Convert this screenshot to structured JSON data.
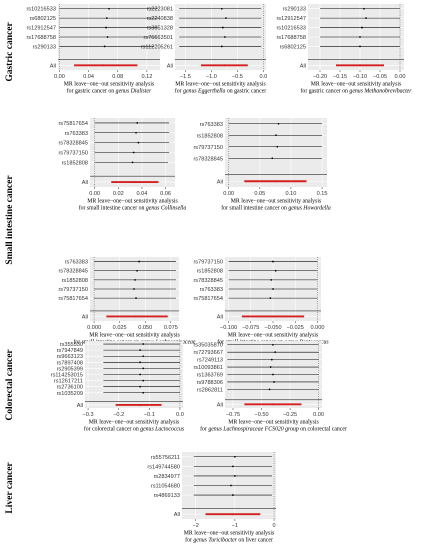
{
  "groups": [
    {
      "label": "Gastric cancer"
    },
    {
      "label": "Small intestine cancer"
    },
    {
      "label": "Colorectal cancer"
    },
    {
      "label": "Liver cancer"
    }
  ],
  "chart_data": [
    {
      "type": "forest",
      "snps": [
        "rs10216533",
        "rs6802125",
        "rs12912547",
        "rs17688758",
        "rs290133"
      ],
      "estimates": [
        0.068,
        0.065,
        0.064,
        0.066,
        0.062
      ],
      "ci_low": [
        0.0,
        0.0,
        0.0,
        0.0,
        0.0
      ],
      "ci_high": [
        0.135,
        0.135,
        0.135,
        0.133,
        0.13
      ],
      "all": {
        "estimate": 0.06,
        "low": 0.02,
        "high": 0.107
      },
      "xlim": [
        -0.002,
        0.138
      ],
      "xticks": [
        {
          "v": 0.0,
          "t": "0.00"
        },
        {
          "v": 0.04,
          "t": "0.04"
        },
        {
          "v": 0.08,
          "t": "0.08"
        },
        {
          "v": 0.12,
          "t": "0.12"
        }
      ],
      "caption1": "MR leave−one−out sensitivity analysis",
      "caption2_pre": "for gastric cancer on ",
      "caption2_it": "genus Dialister",
      "caption2_post": ""
    },
    {
      "type": "forest",
      "snps": [
        "rs2223081",
        "rs2240838",
        "rs3851328",
        "rs76663501",
        "rs112205261"
      ],
      "estimates": [
        -0.8,
        -0.72,
        -0.78,
        -0.74,
        -0.8
      ],
      "ci_low": [
        -1.62,
        -1.62,
        -1.62,
        -1.62,
        -1.62
      ],
      "ci_high": [
        -0.04,
        -0.04,
        -0.04,
        -0.04,
        -0.04
      ],
      "all": {
        "estimate": -0.75,
        "low": -1.2,
        "high": -0.3
      },
      "xlim": [
        -1.7,
        0.05
      ],
      "xticks": [
        {
          "v": -1.5,
          "t": "−1.5"
        },
        {
          "v": -1.0,
          "t": "−1.0"
        },
        {
          "v": -0.5,
          "t": "−0.5"
        },
        {
          "v": 0.0,
          "t": "0.0"
        }
      ],
      "caption1": "MR leave−one−out sensitivity analysis",
      "caption2_pre": "for ",
      "caption2_it": "genus Eggerthella",
      "caption2_post": " on gastric cancer"
    },
    {
      "type": "forest",
      "snps": [
        "rs290133",
        "rs12912547",
        "rs10216533",
        "rs17688758",
        "rs6802125"
      ],
      "estimates": [
        -0.09,
        -0.085,
        -0.095,
        -0.1,
        -0.1
      ],
      "ci_low": [
        -0.2,
        -0.2,
        -0.2,
        -0.2,
        -0.2
      ],
      "ci_high": [
        0.0,
        0.0,
        0.0,
        0.0,
        0.0
      ],
      "all": {
        "estimate": -0.1,
        "low": -0.16,
        "high": -0.04
      },
      "xlim": [
        -0.23,
        0.01
      ],
      "xticks": [
        {
          "v": -0.2,
          "t": "−0.20"
        },
        {
          "v": -0.15,
          "t": "−0.15"
        },
        {
          "v": -0.1,
          "t": "−0.10"
        },
        {
          "v": -0.05,
          "t": "−0.05"
        },
        {
          "v": 0.0,
          "t": "0.00"
        }
      ],
      "caption1": "MR leave−one−out sensitivity analysis",
      "caption2_pre": "for gastric cancer on ",
      "caption2_it": "genus Methanobrevibacter",
      "caption2_post": ""
    },
    {
      "type": "forest",
      "snps": [
        "rs75817654",
        "rs763383",
        "rs78328845",
        "rs79737150",
        "rs1852808"
      ],
      "estimates": [
        0.036,
        0.035,
        0.037,
        0.033,
        0.032
      ],
      "ci_low": [
        0.0,
        0.0,
        0.0,
        0.0,
        0.0
      ],
      "ci_high": [
        0.063,
        0.063,
        0.063,
        0.063,
        0.062
      ],
      "all": {
        "estimate": 0.034,
        "low": 0.014,
        "high": 0.054
      },
      "xlim": [
        -0.004,
        0.068
      ],
      "xticks": [
        {
          "v": 0.0,
          "t": "0.00"
        },
        {
          "v": 0.02,
          "t": "0.02"
        },
        {
          "v": 0.04,
          "t": "0.04"
        },
        {
          "v": 0.06,
          "t": "0.06"
        }
      ],
      "caption1": "MR leave−one−out sensitivity analysis",
      "caption2_pre": "for small intestine cancer on ",
      "caption2_it": "genus Collinsella",
      "caption2_post": ""
    },
    {
      "type": "forest",
      "snps": [
        "rs763383",
        "rs1852808",
        "rs79737150",
        "rs78328845"
      ],
      "estimates": [
        0.08,
        0.076,
        0.078,
        0.07
      ],
      "ci_low": [
        0.0,
        0.0,
        0.0,
        0.0
      ],
      "ci_high": [
        0.15,
        0.15,
        0.15,
        0.15
      ],
      "all": {
        "estimate": 0.075,
        "low": 0.025,
        "high": 0.125
      },
      "xlim": [
        -0.006,
        0.158
      ],
      "xticks": [
        {
          "v": 0.0,
          "t": "0.00"
        },
        {
          "v": 0.05,
          "t": "0.05"
        },
        {
          "v": 0.1,
          "t": "0.10"
        },
        {
          "v": 0.15,
          "t": "0.15"
        }
      ],
      "caption1": "MR leave−one−out sensitivity analysis",
      "caption2_pre": "for small intestine cancer on ",
      "caption2_it": "genus Howardella",
      "caption2_post": ""
    },
    {
      "type": "forest",
      "snps": [
        "rs763383",
        "rs78328845",
        "rs1852808",
        "rs79737150",
        "rs75817654"
      ],
      "estimates": [
        0.044,
        0.042,
        0.04,
        0.039,
        0.041
      ],
      "ci_low": [
        0.0,
        0.0,
        0.0,
        0.0,
        0.0
      ],
      "ci_high": [
        0.08,
        0.08,
        0.08,
        0.08,
        0.08
      ],
      "all": {
        "estimate": 0.04,
        "low": 0.012,
        "high": 0.072
      },
      "xlim": [
        -0.004,
        0.083
      ],
      "xticks": [
        {
          "v": 0.0,
          "t": "0.000"
        },
        {
          "v": 0.025,
          "t": "0.025"
        },
        {
          "v": 0.05,
          "t": "0.050"
        },
        {
          "v": 0.075,
          "t": "0.075"
        }
      ],
      "caption1": "MR leave−one−out sensitivity analysis",
      "caption2_pre": "for small intestine cancer on ",
      "caption2_it": "genus Lachnospiraceae",
      "caption2_post": ""
    },
    {
      "type": "forest",
      "snps": [
        "rs79737150",
        "rs1852808",
        "rs78328845",
        "rs763383",
        "rs75817654"
      ],
      "estimates": [
        -0.05,
        -0.047,
        -0.052,
        -0.05,
        -0.053
      ],
      "ci_low": [
        -0.1,
        -0.1,
        -0.1,
        -0.1,
        -0.1
      ],
      "ci_high": [
        0.0,
        0.0,
        0.0,
        0.0,
        0.0
      ],
      "all": {
        "estimate": -0.05,
        "low": -0.085,
        "high": -0.015
      },
      "xlim": [
        -0.104,
        0.004
      ],
      "xticks": [
        {
          "v": -0.1,
          "t": "−0.100"
        },
        {
          "v": -0.075,
          "t": "−0.075"
        },
        {
          "v": -0.05,
          "t": "−0.050"
        },
        {
          "v": -0.025,
          "t": "−0.025"
        },
        {
          "v": 0.0,
          "t": "0.000"
        }
      ],
      "caption1": "MR leave−one−out sensitivity analysis",
      "caption2_pre": "for small intestine cancer on ",
      "caption2_it": "genus Peptococcus",
      "caption2_post": ""
    },
    {
      "type": "forest",
      "snps": [
        "rs355530",
        "rs7947849",
        "rs9663123",
        "rs7897408",
        "rs2905399",
        "rs114253015",
        "rs12617211",
        "rs2736100",
        "rs1035209"
      ],
      "estimates": [
        -0.12,
        -0.13,
        -0.12,
        -0.13,
        -0.12,
        -0.13,
        -0.12,
        -0.13,
        -0.12
      ],
      "ci_low": [
        -0.25,
        -0.25,
        -0.25,
        -0.25,
        -0.25,
        -0.25,
        -0.25,
        -0.25,
        -0.25
      ],
      "ci_high": [
        0.0,
        0.0,
        0.0,
        0.0,
        0.0,
        0.0,
        0.0,
        0.0,
        0.0
      ],
      "all": {
        "estimate": -0.13,
        "low": -0.21,
        "high": -0.06
      },
      "xlim": [
        -0.31,
        0.01
      ],
      "xticks": [
        {
          "v": -0.3,
          "t": "−0.3"
        },
        {
          "v": -0.2,
          "t": "−0.2"
        },
        {
          "v": -0.1,
          "t": "−0.1"
        },
        {
          "v": 0.0,
          "t": "0.0"
        }
      ],
      "caption1": "MR leave−one−out sensitivity analysis",
      "caption2_pre": "for colorectal cancer on ",
      "caption2_it": "genus Lactococcus",
      "caption2_post": ""
    },
    {
      "type": "forest",
      "snps": [
        "rs35035870",
        "rs72793667",
        "rs7249113",
        "rs10093861",
        "rs1363769",
        "rs9788306",
        "rs2862811"
      ],
      "estimates": [
        -0.4,
        -0.38,
        -0.41,
        -0.42,
        -0.4,
        -0.39,
        -0.43
      ],
      "ci_low": [
        -0.8,
        -0.8,
        -0.8,
        -0.8,
        -0.8,
        -0.8,
        -0.8
      ],
      "ci_high": [
        0.0,
        0.0,
        0.0,
        0.0,
        0.0,
        0.0,
        0.0
      ],
      "all": {
        "estimate": -0.4,
        "low": -0.65,
        "high": -0.15
      },
      "xlim": [
        -0.82,
        0.03
      ],
      "xticks": [
        {
          "v": -0.75,
          "t": "−0.75"
        },
        {
          "v": -0.5,
          "t": "−0.50"
        },
        {
          "v": -0.25,
          "t": "−0.25"
        },
        {
          "v": 0.0,
          "t": "0.00"
        }
      ],
      "caption1": "MR leave−one−out sensitivity analysis",
      "caption2_pre": "for ",
      "caption2_it": "genus Lachnospiraceae FCS020 group",
      "caption2_post": " on colorectal cancer"
    },
    {
      "type": "forest",
      "snps": [
        "rs55756211",
        "rs149744580",
        "rs2834977",
        "rs11054680",
        "rs4869133"
      ],
      "estimates": [
        -1.0,
        -1.05,
        -1.0,
        -1.1,
        -1.05
      ],
      "ci_low": [
        -2.05,
        -2.05,
        -2.05,
        -2.05,
        -2.05
      ],
      "ci_high": [
        -0.05,
        -0.05,
        -0.05,
        -0.05,
        -0.05
      ],
      "all": {
        "estimate": -1.05,
        "low": -1.75,
        "high": -0.35
      },
      "xlim": [
        -2.35,
        0.05
      ],
      "xticks": [
        {
          "v": -2,
          "t": "−2"
        },
        {
          "v": -1,
          "t": "−1"
        },
        {
          "v": 0,
          "t": "0"
        }
      ],
      "caption1": "MR leave−one−out sensitivity analysis",
      "caption2_pre": "for ",
      "caption2_it": "genus Turicibacter",
      "caption2_post": " on liver cancer"
    }
  ]
}
